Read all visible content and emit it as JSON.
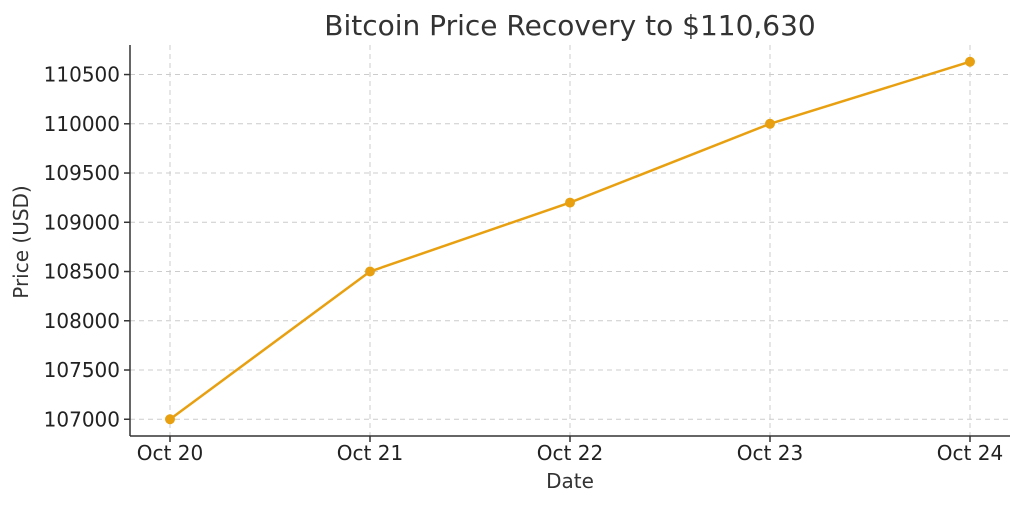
{
  "chart_data": {
    "type": "line",
    "title": "Bitcoin Price Recovery to $110,630",
    "xlabel": "Date",
    "ylabel": "Price (USD)",
    "categories": [
      "Oct 20",
      "Oct 21",
      "Oct 22",
      "Oct 23",
      "Oct 24"
    ],
    "values": [
      107000,
      108500,
      109200,
      110000,
      110630
    ],
    "ylim": [
      106830,
      110800
    ],
    "yticks": [
      107000,
      107500,
      108000,
      108500,
      109000,
      109500,
      110000,
      110500
    ],
    "grid": true,
    "legend": "none",
    "color": "#E8A010"
  }
}
